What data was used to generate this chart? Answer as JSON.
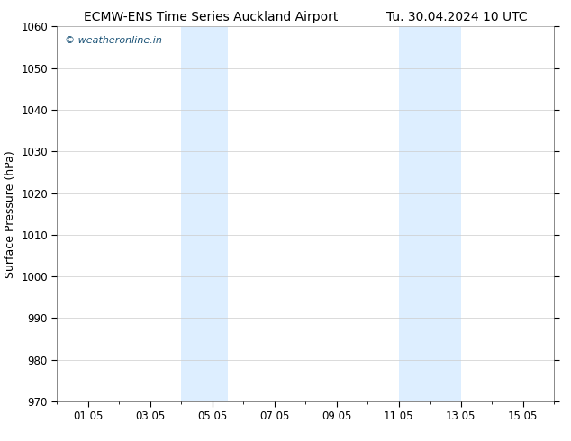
{
  "title_left": "ECMW-ENS Time Series Auckland Airport",
  "title_right": "Tu. 30.04.2024 10 UTC",
  "ylabel": "Surface Pressure (hPa)",
  "ylim": [
    970,
    1060
  ],
  "yticks": [
    970,
    980,
    990,
    1000,
    1010,
    1020,
    1030,
    1040,
    1050,
    1060
  ],
  "xtick_positions": [
    1,
    3,
    5,
    7,
    9,
    11,
    13,
    15
  ],
  "xtick_labels": [
    "01.05",
    "03.05",
    "05.05",
    "07.05",
    "09.05",
    "11.05",
    "13.05",
    "15.05"
  ],
  "xlim": [
    0.0,
    16.0
  ],
  "shaded_regions": [
    {
      "xstart": 4.0,
      "xend": 5.5
    },
    {
      "xstart": 11.0,
      "xend": 13.0
    }
  ],
  "shaded_color": "#ddeeff",
  "background_color": "#ffffff",
  "plot_bg_color": "#ffffff",
  "border_color": "#aaaaaa",
  "watermark_text": "© weatheronline.in",
  "watermark_color": "#1a5276",
  "title_fontsize": 10,
  "label_fontsize": 9,
  "tick_fontsize": 8.5
}
